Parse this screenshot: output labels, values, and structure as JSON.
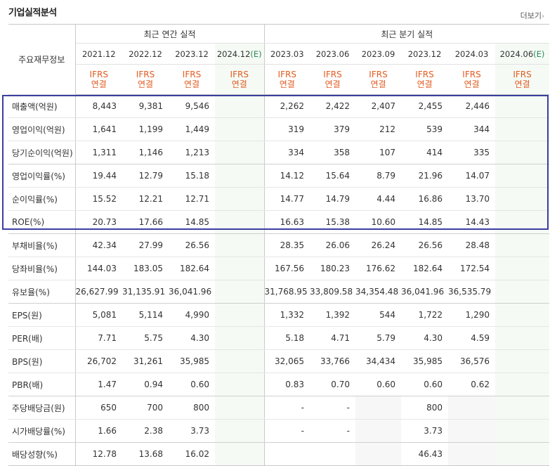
{
  "title": "기업실적분석",
  "more_label": "더보기",
  "headers": {
    "corner": "주요재무정보",
    "annual_group": "최근 연간 실적",
    "quarterly_group": "최근 분기 실적",
    "periods": [
      "2021.12",
      "2022.12",
      "2023.12",
      "2024.12",
      "2023.03",
      "2023.06",
      "2023.09",
      "2023.12",
      "2024.03",
      "2024.06"
    ],
    "estimate_mark": "(E)",
    "accounting_line1": "IFRS",
    "accounting_line2": "연결"
  },
  "rows": [
    {
      "label": "매출액(억원)",
      "values": [
        "8,443",
        "9,381",
        "9,546",
        "",
        "2,262",
        "2,422",
        "2,407",
        "2,455",
        "2,446",
        ""
      ]
    },
    {
      "label": "영업이익(억원)",
      "values": [
        "1,641",
        "1,199",
        "1,449",
        "",
        "319",
        "379",
        "212",
        "539",
        "344",
        ""
      ]
    },
    {
      "label": "당기순이익(억원)",
      "values": [
        "1,311",
        "1,146",
        "1,213",
        "",
        "334",
        "358",
        "107",
        "414",
        "335",
        ""
      ]
    },
    {
      "label": "영업이익률(%)",
      "values": [
        "19.44",
        "12.79",
        "15.18",
        "",
        "14.12",
        "15.64",
        "8.79",
        "21.96",
        "14.07",
        ""
      ]
    },
    {
      "label": "순이익률(%)",
      "values": [
        "15.52",
        "12.21",
        "12.71",
        "",
        "14.77",
        "14.79",
        "4.44",
        "16.86",
        "13.70",
        ""
      ]
    },
    {
      "label": "ROE(%)",
      "values": [
        "20.73",
        "17.66",
        "14.85",
        "",
        "16.63",
        "15.38",
        "10.60",
        "14.85",
        "14.43",
        ""
      ]
    },
    {
      "label": "부채비율(%)",
      "values": [
        "42.34",
        "27.99",
        "26.56",
        "",
        "28.35",
        "26.06",
        "26.24",
        "26.56",
        "28.48",
        ""
      ]
    },
    {
      "label": "당좌비율(%)",
      "values": [
        "144.03",
        "183.05",
        "182.64",
        "",
        "167.56",
        "180.23",
        "176.62",
        "182.64",
        "172.54",
        ""
      ]
    },
    {
      "label": "유보율(%)",
      "values": [
        "26,627.99",
        "31,135.91",
        "36,041.96",
        "",
        "31,768.95",
        "33,809.58",
        "34,354.48",
        "36,041.96",
        "36,535.79",
        ""
      ]
    },
    {
      "label": "EPS(원)",
      "values": [
        "5,081",
        "5,114",
        "4,990",
        "",
        "1,332",
        "1,392",
        "544",
        "1,722",
        "1,290",
        ""
      ]
    },
    {
      "label": "PER(배)",
      "values": [
        "7.71",
        "5.75",
        "4.30",
        "",
        "5.18",
        "4.71",
        "5.79",
        "4.30",
        "4.59",
        ""
      ]
    },
    {
      "label": "BPS(원)",
      "values": [
        "26,702",
        "31,261",
        "35,985",
        "",
        "32,065",
        "33,766",
        "34,434",
        "35,985",
        "36,576",
        ""
      ]
    },
    {
      "label": "PBR(배)",
      "values": [
        "1.47",
        "0.94",
        "0.60",
        "",
        "0.83",
        "0.70",
        "0.60",
        "0.60",
        "0.62",
        ""
      ]
    },
    {
      "label": "주당배당금(원)",
      "values": [
        "650",
        "700",
        "800",
        "",
        "-",
        "-",
        "",
        "800",
        "",
        ""
      ]
    },
    {
      "label": "시가배당률(%)",
      "values": [
        "1.66",
        "2.38",
        "3.73",
        "",
        "-",
        "-",
        "",
        "3.73",
        "",
        ""
      ]
    },
    {
      "label": "배당성향(%)",
      "values": [
        "12.78",
        "13.68",
        "16.02",
        "",
        "",
        "",
        "",
        "46.43",
        "",
        ""
      ]
    }
  ]
}
